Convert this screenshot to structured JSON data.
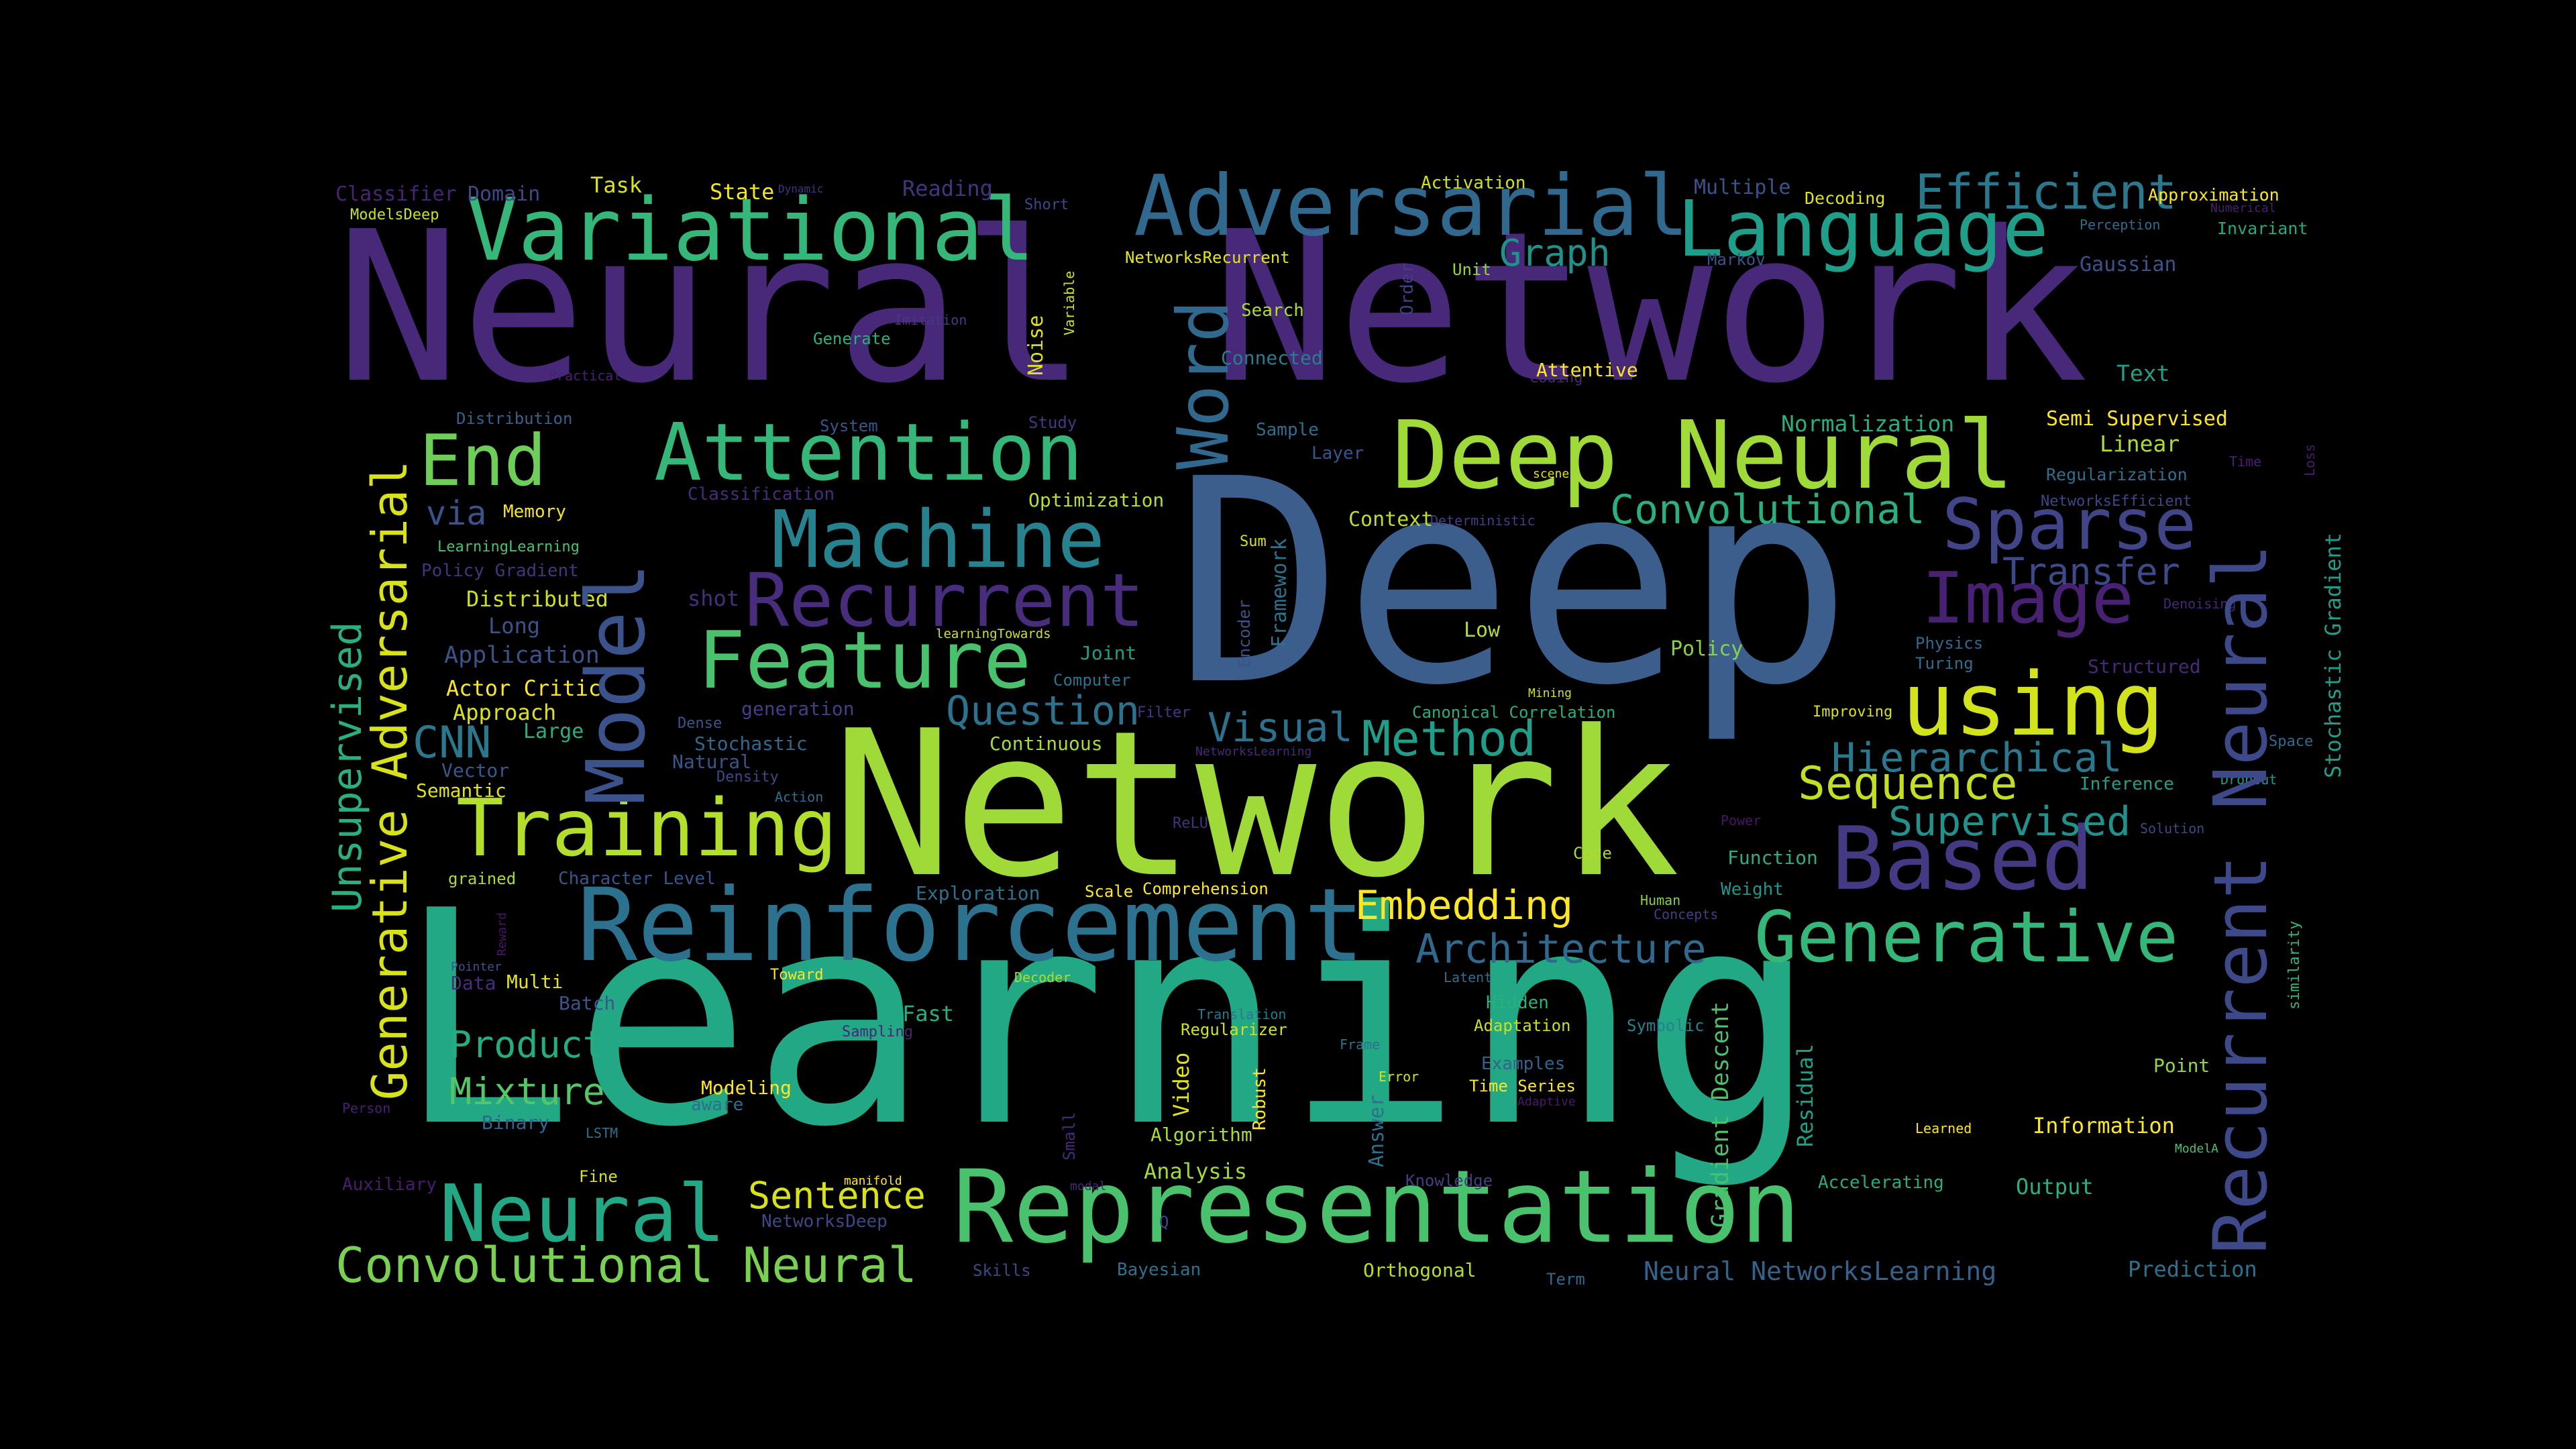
{
  "words": [
    {
      "text": "Learning",
      "color": "#22a884"
    },
    {
      "text": "Neural Network",
      "color": "#482878"
    },
    {
      "text": "Deep",
      "color": "#3b5e8c"
    },
    {
      "text": "Network",
      "color": "#a0da39"
    },
    {
      "text": "Representation",
      "color": "#4ac16d"
    },
    {
      "text": "Reinforcement",
      "color": "#2c728e"
    },
    {
      "text": "Deep Neural",
      "color": "#a0da39"
    },
    {
      "text": "Adversarial",
      "color": "#31688e"
    },
    {
      "text": "Variational",
      "color": "#35b779"
    },
    {
      "text": "Language",
      "color": "#1f9e89"
    },
    {
      "text": "Attention",
      "color": "#35b779"
    },
    {
      "text": "Machine",
      "color": "#26828e"
    },
    {
      "text": "Recurrent",
      "color": "#472d7b"
    },
    {
      "text": "Feature",
      "color": "#4ac16d"
    },
    {
      "text": "Training",
      "color": "#b4de2c"
    },
    {
      "text": "using",
      "color": "#d2e21b"
    },
    {
      "text": "Based",
      "color": "#443983"
    },
    {
      "text": "Generative",
      "color": "#35b779"
    },
    {
      "text": "Sparse",
      "color": "#414487"
    },
    {
      "text": "Image",
      "color": "#482173"
    },
    {
      "text": "Neural",
      "color": "#22a884"
    },
    {
      "text": "Convolutional Neural",
      "color": "#7ad151"
    },
    {
      "text": "End",
      "color": "#6ece58"
    },
    {
      "text": "Efficient",
      "color": "#2a788e"
    },
    {
      "text": "Method",
      "color": "#1f9e89"
    },
    {
      "text": "Sequence",
      "color": "#c2df23"
    },
    {
      "text": "Hierarchical",
      "color": "#2a788e"
    },
    {
      "text": "Supervised",
      "color": "#21918c"
    },
    {
      "text": "Embedding",
      "color": "#fde725"
    },
    {
      "text": "Architecture",
      "color": "#31688e"
    },
    {
      "text": "Convolutional",
      "color": "#2ab07f"
    },
    {
      "text": "Transfer",
      "color": "#3e4989"
    },
    {
      "text": "Question",
      "color": "#2c728e"
    },
    {
      "text": "Visual",
      "color": "#2c728e"
    },
    {
      "text": "Graph",
      "color": "#21918c"
    },
    {
      "text": "Sentence",
      "color": "#d8e219"
    },
    {
      "text": "Product",
      "color": "#25ac82"
    },
    {
      "text": "Mixture",
      "color": "#54c568"
    },
    {
      "text": "CNN",
      "color": "#2a788e"
    },
    {
      "text": "Normalization",
      "color": "#29af7f"
    },
    {
      "text": "Linear",
      "color": "#aadc32"
    },
    {
      "text": "Regularization",
      "color": "#2e6f8e"
    },
    {
      "text": "Semi Supervised",
      "color": "#fde725"
    },
    {
      "text": "Gaussian",
      "color": "#3b528b"
    },
    {
      "text": "Text",
      "color": "#1fa187"
    },
    {
      "text": "via",
      "color": "#3b528b"
    },
    {
      "text": "Task",
      "color": "#dde318"
    },
    {
      "text": "State",
      "color": "#f1e51d"
    },
    {
      "text": "Reading",
      "color": "#46327e"
    },
    {
      "text": "Classifier",
      "color": "#482475"
    },
    {
      "text": "Domain",
      "color": "#3e4989"
    },
    {
      "text": "ModelsDeep",
      "color": "#c8e020"
    },
    {
      "text": "Dynamic",
      "color": "#46337e"
    },
    {
      "text": "Short",
      "color": "#404688"
    },
    {
      "text": "Activation",
      "color": "#d0e11c"
    },
    {
      "text": "Multiple",
      "color": "#3b528b"
    },
    {
      "text": "Decoding",
      "color": "#dde318"
    },
    {
      "text": "Approximation",
      "color": "#fde725"
    },
    {
      "text": "Numerical",
      "color": "#481f70"
    },
    {
      "text": "Invariant",
      "color": "#23a983"
    },
    {
      "text": "Perception",
      "color": "#2f6c8e"
    },
    {
      "text": "NetworksRecurrent",
      "color": "#e5e419"
    },
    {
      "text": "Unit",
      "color": "#94d840"
    },
    {
      "text": "Markov",
      "color": "#3b528b"
    },
    {
      "text": "Search",
      "color": "#addc30"
    },
    {
      "text": "Connected",
      "color": "#287d8e"
    },
    {
      "text": "Imitation",
      "color": "#453882"
    },
    {
      "text": "Generate",
      "color": "#2ab07f"
    },
    {
      "text": "Practical",
      "color": "#482173"
    },
    {
      "text": "Coding",
      "color": "#482878"
    },
    {
      "text": "Attentive",
      "color": "#fde725"
    },
    {
      "text": "Distribution",
      "color": "#34618d"
    },
    {
      "text": "Study",
      "color": "#453781"
    },
    {
      "text": "System",
      "color": "#39568c"
    },
    {
      "text": "Sample",
      "color": "#2e6e8e"
    },
    {
      "text": "Layer",
      "color": "#39568c"
    },
    {
      "text": "scene",
      "color": "#dde318"
    },
    {
      "text": "Time",
      "color": "#482071"
    },
    {
      "text": "Classification",
      "color": "#472c7a"
    },
    {
      "text": "Optimization",
      "color": "#b5de2b"
    },
    {
      "text": "Memory",
      "color": "#f6e620"
    },
    {
      "text": "LearningLearning",
      "color": "#4ac16d"
    },
    {
      "text": "Policy Gradient",
      "color": "#46337e"
    },
    {
      "text": "Distributed",
      "color": "#d0e11c"
    },
    {
      "text": "Long",
      "color": "#3b528b"
    },
    {
      "text": "shot",
      "color": "#472f7d"
    },
    {
      "text": "Context",
      "color": "#bade28"
    },
    {
      "text": "Deterministic",
      "color": "#433e85"
    },
    {
      "text": "Sum",
      "color": "#d8e219"
    },
    {
      "text": "Low",
      "color": "#b0dd2f"
    },
    {
      "text": "Policy",
      "color": "#84d44b"
    },
    {
      "text": "Physics",
      "color": "#31688e"
    },
    {
      "text": "Turing",
      "color": "#2e6e8e"
    },
    {
      "text": "Denoising",
      "color": "#482677"
    },
    {
      "text": "Structured",
      "color": "#482878"
    },
    {
      "text": "NetworksEfficient",
      "color": "#3f4788"
    },
    {
      "text": "learningTowards",
      "color": "#d2e21b"
    },
    {
      "text": "Application",
      "color": "#3b528b"
    },
    {
      "text": "Actor Critic",
      "color": "#fde725"
    },
    {
      "text": "Approach",
      "color": "#dde318"
    },
    {
      "text": "Large",
      "color": "#2ab07f"
    },
    {
      "text": "Joint",
      "color": "#1f9e89"
    },
    {
      "text": "Computer",
      "color": "#2c728e"
    },
    {
      "text": "Filter",
      "color": "#443983"
    },
    {
      "text": "Mining",
      "color": "#c8e020"
    },
    {
      "text": "Canonical Correlation",
      "color": "#29af7f"
    },
    {
      "text": "Improving",
      "color": "#d8e219"
    },
    {
      "text": "Dense",
      "color": "#39568c"
    },
    {
      "text": "generation",
      "color": "#433e85"
    },
    {
      "text": "Stochastic",
      "color": "#31688e"
    },
    {
      "text": "Natural",
      "color": "#3a548c"
    },
    {
      "text": "Continuous",
      "color": "#a5db36"
    },
    {
      "text": "NetworksLearning",
      "color": "#472a7a"
    },
    {
      "text": "Vector",
      "color": "#38588c"
    },
    {
      "text": "Semantic",
      "color": "#e2e418"
    },
    {
      "text": "Density",
      "color": "#3f4788"
    },
    {
      "text": "Action",
      "color": "#2e6e8e"
    },
    {
      "text": "Inference",
      "color": "#1fa187"
    },
    {
      "text": "Dropout",
      "color": "#1e9c89"
    },
    {
      "text": "Space",
      "color": "#2f6b8e"
    },
    {
      "text": "ReLU",
      "color": "#472f7d"
    },
    {
      "text": "Power",
      "color": "#481467"
    },
    {
      "text": "Solution",
      "color": "#3f4788"
    },
    {
      "text": "Code",
      "color": "#addc30"
    },
    {
      "text": "Function",
      "color": "#2ab07f"
    },
    {
      "text": "grained",
      "color": "#a8db34"
    },
    {
      "text": "Character Level",
      "color": "#39568c"
    },
    {
      "text": "Exploration",
      "color": "#2c728e"
    },
    {
      "text": "Scale",
      "color": "#fde725"
    },
    {
      "text": "Comprehension",
      "color": "#fde725"
    },
    {
      "text": "Human",
      "color": "#7fd34e"
    },
    {
      "text": "Weight",
      "color": "#1f958b"
    },
    {
      "text": "Concepts",
      "color": "#433e85"
    },
    {
      "text": "Pointer",
      "color": "#3b528b"
    },
    {
      "text": "Data",
      "color": "#472d7b"
    },
    {
      "text": "Multi",
      "color": "#e5e419"
    },
    {
      "text": "Batch",
      "color": "#3a548c"
    },
    {
      "text": "Toward",
      "color": "#fde725"
    },
    {
      "text": "Decoder",
      "color": "#addc30"
    },
    {
      "text": "Latent",
      "color": "#2e6e8e"
    },
    {
      "text": "Fast",
      "color": "#2ab07f"
    },
    {
      "text": "Sampling",
      "color": "#482677"
    },
    {
      "text": "Translation",
      "color": "#2a788e"
    },
    {
      "text": "Regularizer",
      "color": "#d0e11c"
    },
    {
      "text": "Frame",
      "color": "#2c728e"
    },
    {
      "text": "Hidden",
      "color": "#2ab07f"
    },
    {
      "text": "Adaptation",
      "color": "#c8e020"
    },
    {
      "text": "Symbolic",
      "color": "#26828e"
    },
    {
      "text": "Examples",
      "color": "#33638d"
    },
    {
      "text": "Error",
      "color": "#d2e21b"
    },
    {
      "text": "Time Series",
      "color": "#fde725"
    },
    {
      "text": "Adaptive",
      "color": "#481a6c"
    },
    {
      "text": "Point",
      "color": "#90d743"
    },
    {
      "text": "Modeling",
      "color": "#fde725"
    },
    {
      "text": "aware",
      "color": "#2e6e8e"
    },
    {
      "text": "Binary",
      "color": "#33638d"
    },
    {
      "text": "Person",
      "color": "#482071"
    },
    {
      "text": "LSTM",
      "color": "#2e6f8e"
    },
    {
      "text": "Algorithm",
      "color": "#a8db34"
    },
    {
      "text": "Learned",
      "color": "#fde725"
    },
    {
      "text": "Information",
      "color": "#fde725"
    },
    {
      "text": "ModelA",
      "color": "#4ac16d"
    },
    {
      "text": "Analysis",
      "color": "#a0da39"
    },
    {
      "text": "Fine",
      "color": "#d8e219"
    },
    {
      "text": "manifold",
      "color": "#fde725"
    },
    {
      "text": "modal",
      "color": "#472a7a"
    },
    {
      "text": "Knowledge",
      "color": "#433e85"
    },
    {
      "text": "Accelerating",
      "color": "#26ad81"
    },
    {
      "text": "Output",
      "color": "#2ab07f"
    },
    {
      "text": "Auxiliary",
      "color": "#481d6f"
    },
    {
      "text": "NetworksDeep",
      "color": "#3f4788"
    },
    {
      "text": "Skills",
      "color": "#404688"
    },
    {
      "text": "Bayesian",
      "color": "#2c728e"
    },
    {
      "text": "Orthogonal",
      "color": "#b5de2b"
    },
    {
      "text": "Term",
      "color": "#31688e"
    },
    {
      "text": "Neural NetworksLearning",
      "color": "#33638d"
    },
    {
      "text": "Prediction",
      "color": "#2c728e"
    },
    {
      "text": "Q",
      "color": "#404688"
    }
  ],
  "vertical_words": [
    {
      "text": "Word",
      "color": "#31688e"
    },
    {
      "text": "Model",
      "color": "#3b528b"
    },
    {
      "text": "Generative Adversarial",
      "color": "#d8e219"
    },
    {
      "text": "Unsupervised",
      "color": "#2ab07f"
    },
    {
      "text": "Recurrent Neural",
      "color": "#3e4989"
    },
    {
      "text": "Stochastic Gradient",
      "color": "#1f9e89"
    },
    {
      "text": "Gradient Descent",
      "color": "#4ac16d"
    },
    {
      "text": "Residual",
      "color": "#1fa187"
    },
    {
      "text": "Framework",
      "color": "#2c728e"
    },
    {
      "text": "Encoder",
      "color": "#3b528b"
    },
    {
      "text": "Noise",
      "color": "#dde318"
    },
    {
      "text": "Variable",
      "color": "#d2e21b"
    },
    {
      "text": "Order",
      "color": "#433e85"
    },
    {
      "text": "Video",
      "color": "#e2e418"
    },
    {
      "text": "Robust",
      "color": "#fde725"
    },
    {
      "text": "Answer",
      "color": "#2c728e"
    },
    {
      "text": "Small",
      "color": "#472a7a"
    },
    {
      "text": "Reward",
      "color": "#481769"
    },
    {
      "text": "similarity",
      "color": "#35b779"
    },
    {
      "text": "Loss",
      "color": "#481c6e"
    }
  ]
}
